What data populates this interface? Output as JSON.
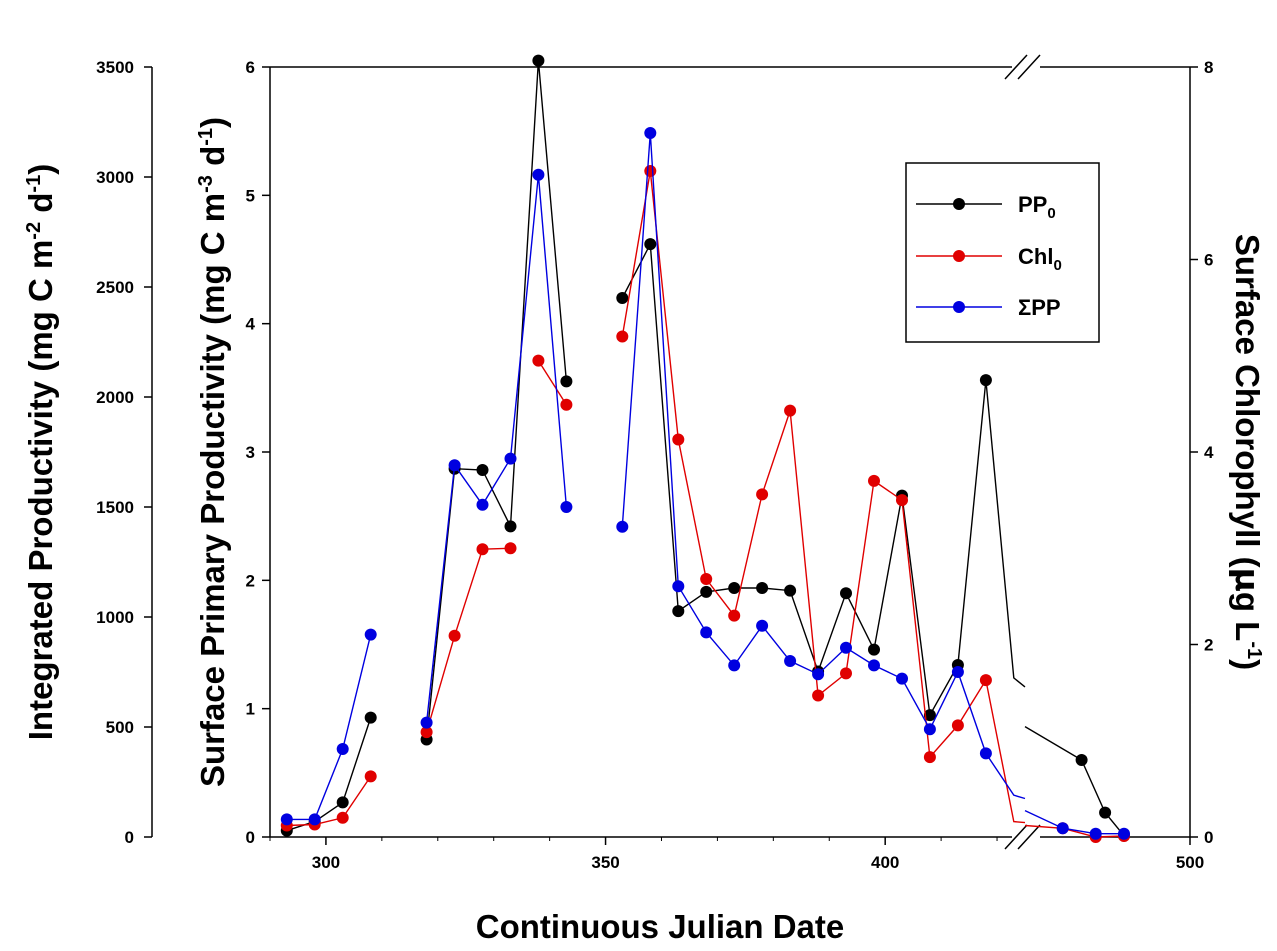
{
  "chart_data": {
    "type": "line",
    "xlabel": "Continuous Julian Date",
    "ylabel_left_outer": "Integrated Productivity (mg C m-2 d-1)",
    "ylabel_left_inner": "Surface Primary Productivity (mg C m-3 d-1)",
    "ylabel_right": "Surface Chlorophyll (μg L-1)",
    "x_axis": {
      "segments": [
        {
          "range": [
            290,
            425
          ]
        },
        {
          "range": [
            465,
            500
          ]
        }
      ],
      "ticks": [
        300,
        350,
        400,
        500
      ],
      "break_marks": true
    },
    "y_axes": {
      "integrated": {
        "range": [
          0,
          3500
        ],
        "ticks": [
          0,
          500,
          1000,
          1500,
          2000,
          2500,
          3000,
          3500
        ]
      },
      "surface_pp": {
        "range": [
          0,
          6
        ],
        "ticks": [
          0,
          1,
          2,
          3,
          4,
          5,
          6
        ]
      },
      "chlorophyll": {
        "range": [
          0,
          8
        ],
        "ticks": [
          0,
          2,
          4,
          6,
          8
        ]
      }
    },
    "grid": false,
    "legend": {
      "position": "top-right",
      "entries": [
        "PP0",
        "Chl0",
        "ΣPP"
      ]
    },
    "series": [
      {
        "name": "PP0",
        "axis": "surface_pp",
        "color": "#000000",
        "segments": [
          [
            [
              293,
              0.05
            ],
            [
              298,
              0.12
            ],
            [
              303,
              0.27
            ],
            [
              308,
              0.93
            ]
          ],
          [
            [
              318,
              0.76
            ],
            [
              323,
              2.87
            ],
            [
              328,
              2.86
            ],
            [
              333,
              2.42
            ],
            [
              338,
              6.05
            ],
            [
              343,
              3.55
            ]
          ],
          [
            [
              353,
              4.2
            ],
            [
              358,
              4.62
            ],
            [
              363,
              1.76
            ],
            [
              368,
              1.91
            ],
            [
              373,
              1.94
            ],
            [
              378,
              1.94
            ],
            [
              383,
              1.92
            ],
            [
              388,
              1.29
            ],
            [
              393,
              1.9
            ],
            [
              398,
              1.46
            ],
            [
              403,
              2.66
            ],
            [
              408,
              0.95
            ],
            [
              413,
              1.34
            ],
            [
              418,
              3.56
            ],
            [
              423,
              1.24
            ],
            [
              425,
              1.17
            ]
          ],
          [
            [
              465,
              0.86
            ],
            [
              477,
              0.6
            ],
            [
              482,
              0.19
            ],
            [
              486,
              0.01
            ]
          ]
        ]
      },
      {
        "name": "Chl0",
        "axis": "chlorophyll",
        "color": "#e00000",
        "segments": [
          [
            [
              293,
              0.12
            ],
            [
              298,
              0.13
            ],
            [
              303,
              0.2
            ],
            [
              308,
              0.63
            ]
          ],
          [
            [
              318,
              1.09
            ],
            [
              323,
              2.09
            ],
            [
              328,
              2.99
            ],
            [
              333,
              3.0
            ]
          ],
          [
            [
              338,
              4.95
            ],
            [
              343,
              4.49
            ]
          ],
          [
            [
              353,
              5.2
            ],
            [
              358,
              6.92
            ],
            [
              363,
              4.13
            ],
            [
              368,
              2.68
            ],
            [
              373,
              2.3
            ],
            [
              378,
              3.56
            ],
            [
              383,
              4.43
            ],
            [
              388,
              1.47
            ],
            [
              393,
              1.7
            ],
            [
              398,
              3.7
            ],
            [
              403,
              3.5
            ],
            [
              408,
              0.83
            ],
            [
              413,
              1.16
            ],
            [
              418,
              1.63
            ],
            [
              423,
              0.16
            ],
            [
              425,
              0.15
            ]
          ],
          [
            [
              465,
              0.12
            ],
            [
              473,
              0.09
            ],
            [
              480,
              0.0
            ],
            [
              486,
              0.01
            ]
          ]
        ]
      },
      {
        "name": "ΣPP",
        "axis": "integrated",
        "color": "#0000e0",
        "segments": [
          [
            [
              293,
              80
            ],
            [
              298,
              80
            ],
            [
              303,
              400
            ],
            [
              308,
              920
            ]
          ],
          [
            [
              318,
              520
            ],
            [
              323,
              1690
            ],
            [
              328,
              1510
            ],
            [
              333,
              1720
            ],
            [
              338,
              3010
            ],
            [
              343,
              1500
            ]
          ],
          [
            [
              353,
              1410
            ],
            [
              358,
              3200
            ],
            [
              363,
              1140
            ],
            [
              368,
              930
            ],
            [
              373,
              780
            ],
            [
              378,
              960
            ],
            [
              383,
              800
            ],
            [
              388,
              740
            ],
            [
              393,
              860
            ],
            [
              398,
              780
            ],
            [
              403,
              720
            ],
            [
              408,
              490
            ],
            [
              413,
              750
            ],
            [
              418,
              380
            ],
            [
              423,
              190
            ],
            [
              425,
              175
            ]
          ],
          [
            [
              465,
              120
            ],
            [
              473,
              40
            ],
            [
              480,
              15
            ],
            [
              486,
              15
            ]
          ]
        ]
      }
    ]
  }
}
